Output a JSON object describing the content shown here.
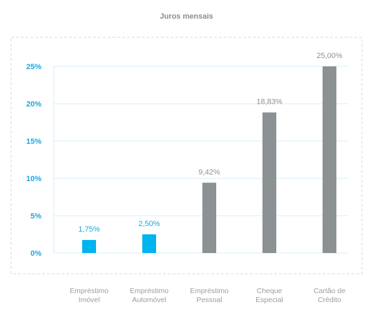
{
  "chart_data": {
    "type": "bar",
    "title": "Juros mensais",
    "categories": [
      [
        "Empréstimo",
        "Imóvel"
      ],
      [
        "Empréstimo",
        "Automóvel"
      ],
      [
        "Empréstimo",
        "Pessoal"
      ],
      [
        "Cheque",
        "Especial"
      ],
      [
        "Cartão de",
        "Crédito"
      ]
    ],
    "values": [
      1.75,
      2.5,
      9.42,
      18.83,
      25.0
    ],
    "value_labels": [
      "1,75%",
      "2,50%",
      "9,42%",
      "18,83%",
      "25,00%"
    ],
    "bar_colors": [
      "#00b4f0",
      "#00b4f0",
      "#8c9194",
      "#8c9194",
      "#8c9194"
    ],
    "label_colors": [
      "#1aa7e0",
      "#1aa7e0",
      "#8c9194",
      "#8c9194",
      "#8c9194"
    ],
    "ylim": [
      0,
      25
    ],
    "yticks": [
      0,
      5,
      10,
      15,
      20,
      25
    ],
    "ytick_labels": [
      "0%",
      "5%",
      "10%",
      "15%",
      "20%",
      "25%"
    ],
    "grid": true,
    "xlabel": "",
    "ylabel": ""
  },
  "colors": {
    "grid": "#d6eef8",
    "frame": "#d9d9d9",
    "axis_text": "#1aa7e0",
    "category_text": "#9a9da0"
  }
}
